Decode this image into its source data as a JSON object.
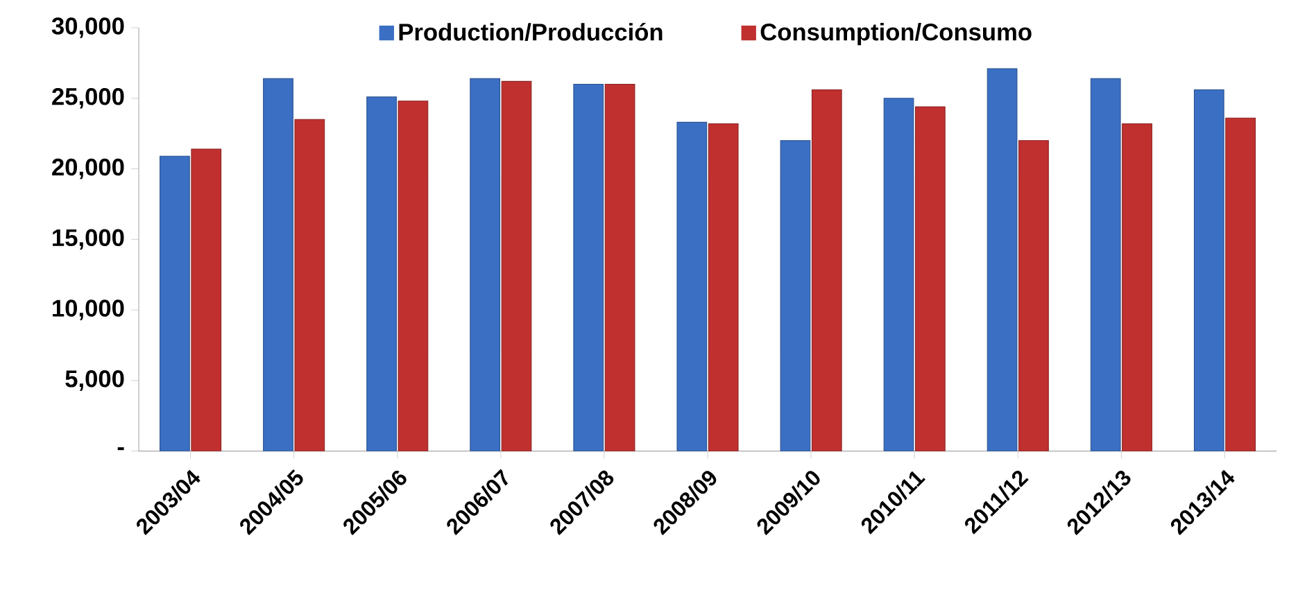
{
  "chart_data": {
    "type": "bar",
    "categories": [
      "2003/04",
      "2004/05",
      "2005/06",
      "2006/07",
      "2007/08",
      "2008/09",
      "2009/10",
      "2010/11",
      "2011/12",
      "2012/13",
      "2013/14"
    ],
    "series": [
      {
        "name": "Production/Producción",
        "color": "#3a6fc4",
        "values": [
          20900,
          26400,
          25100,
          26400,
          26000,
          23300,
          22000,
          25000,
          27100,
          26400,
          25600
        ]
      },
      {
        "name": "Consumption/Consumo",
        "color": "#c0302f",
        "values": [
          21400,
          23500,
          24800,
          26200,
          26000,
          23200,
          25600,
          24400,
          22000,
          23200,
          23600
        ]
      }
    ],
    "ylim": [
      0,
      30000
    ],
    "yticks": [
      {
        "value": 0,
        "label": "-"
      },
      {
        "value": 5000,
        "label": "5,000"
      },
      {
        "value": 10000,
        "label": "10,000"
      },
      {
        "value": 15000,
        "label": "15,000"
      },
      {
        "value": 20000,
        "label": "20,000"
      },
      {
        "value": 25000,
        "label": "25,000"
      },
      {
        "value": 30000,
        "label": "30,000"
      }
    ],
    "grid": false,
    "legend": "top"
  }
}
